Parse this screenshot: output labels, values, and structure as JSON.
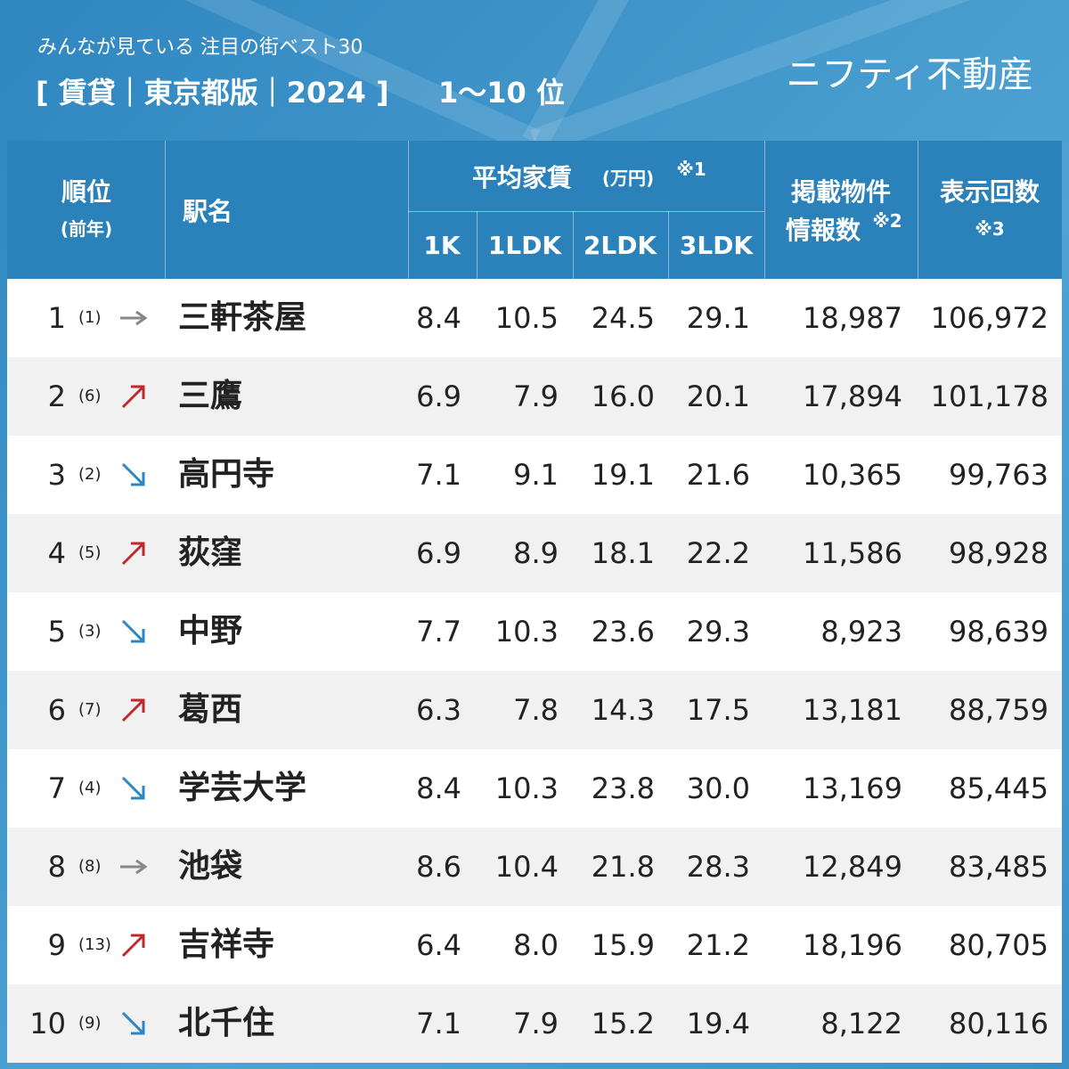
{
  "header": {
    "subtitle": "みんなが見ている 注目の街ベスト30",
    "title": "[ 賃貸｜東京都版｜2024 ]",
    "range": "1〜10 位",
    "brand": "ニフティ不動産"
  },
  "table": {
    "head": {
      "rank": "順位",
      "prev": "(前年)",
      "station": "駅名",
      "rent": "平均家賃",
      "rent_unit": "(万円)",
      "rent_note": "※1",
      "k1": "1K",
      "ldk1": "1LDK",
      "ldk2": "2LDK",
      "ldk3": "3LDK",
      "listings1": "掲載物件",
      "listings2": "情報数",
      "listings_note": "※2",
      "views": "表示回数",
      "views_note": "※3"
    },
    "rows": [
      [
        "1",
        "(1)",
        "三軒茶屋",
        "8.4",
        "10.5",
        "24.5",
        "29.1",
        "18,987",
        "106,972"
      ],
      [
        "2",
        "(6)",
        "三鷹",
        "6.9",
        "7.9",
        "16.0",
        "20.1",
        "17,894",
        "101,178"
      ],
      [
        "3",
        "(2)",
        "高円寺",
        "7.1",
        "9.1",
        "19.1",
        "21.6",
        "10,365",
        "99,763"
      ],
      [
        "4",
        "(5)",
        "荻窪",
        "6.9",
        "8.9",
        "18.1",
        "22.2",
        "11,586",
        "98,928"
      ],
      [
        "5",
        "(3)",
        "中野",
        "7.7",
        "10.3",
        "23.6",
        "29.3",
        "8,923",
        "98,639"
      ],
      [
        "6",
        "(7)",
        "葛西",
        "6.3",
        "7.8",
        "14.3",
        "17.5",
        "13,181",
        "88,759"
      ],
      [
        "7",
        "(4)",
        "学芸大学",
        "8.4",
        "10.3",
        "23.8",
        "30.0",
        "13,169",
        "85,445"
      ],
      [
        "8",
        "(8)",
        "池袋",
        "8.6",
        "10.4",
        "21.8",
        "28.3",
        "12,849",
        "83,485"
      ],
      [
        "9",
        "(13)",
        "吉祥寺",
        "6.4",
        "8.0",
        "15.9",
        "21.2",
        "18,196",
        "80,705"
      ],
      [
        "10",
        "(9)",
        "北千住",
        "7.1",
        "7.9",
        "15.2",
        "19.4",
        "8,122",
        "80,116"
      ]
    ]
  }
}
